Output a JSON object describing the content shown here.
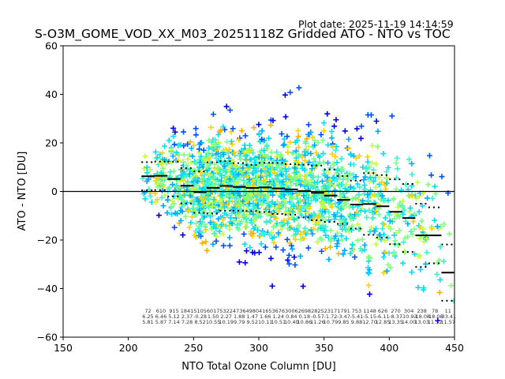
{
  "plot_date": "Plot date: 2025-11-19 14:14:59",
  "chart_data": {
    "type": "scatter",
    "title": "S-O3M_GOME_VOD_XX_M03_20251118Z Gridded ATO - NTO vs TOC",
    "xlabel": "NTO Total Ozone Column [DU]",
    "ylabel": "ATO - NTO [DU]",
    "xlim": [
      150,
      450
    ],
    "ylim": [
      -60,
      60
    ],
    "xticks": [
      "150",
      "200",
      "250",
      "300",
      "350",
      "400",
      "450"
    ],
    "yticks": [
      "60",
      "40",
      "20",
      "0",
      "−20",
      "−40",
      "−60"
    ],
    "zero_line": 0,
    "bin_width": 10,
    "bins": [
      {
        "x": 215,
        "count": "72",
        "mean": "6.25",
        "std": "5.81"
      },
      {
        "x": 225,
        "count": "610",
        "mean": "6.46",
        "std": "5.87"
      },
      {
        "x": 235,
        "count": "915",
        "mean": "5.12",
        "std": "7.14"
      },
      {
        "x": 245,
        "count": "1841",
        "mean": "2.37",
        "std": "7.28"
      },
      {
        "x": 255,
        "count": "5105",
        "mean": "-0.28",
        "std": "8.52"
      },
      {
        "x": 265,
        "count": "6017",
        "mean": "1.50",
        "std": "10.55"
      },
      {
        "x": 275,
        "count": "5322",
        "mean": "2.27",
        "std": "10.19"
      },
      {
        "x": 285,
        "count": "4736",
        "mean": "1.88",
        "std": "9.79"
      },
      {
        "x": 295,
        "count": "4980",
        "mean": "1.47",
        "std": "9.52"
      },
      {
        "x": 305,
        "count": "4165",
        "mean": "1.66",
        "std": "10.11"
      },
      {
        "x": 315,
        "count": "3676",
        "mean": "1.24",
        "std": "10.51"
      },
      {
        "x": 325,
        "count": "3006",
        "mean": "0.84",
        "std": "10.40"
      },
      {
        "x": 335,
        "count": "2698",
        "mean": "0.18",
        "std": "10.86"
      },
      {
        "x": 345,
        "count": "2825",
        "mean": "-0.57",
        "std": "11.26"
      },
      {
        "x": 355,
        "count": "2317",
        "mean": "-1.72",
        "std": "10.79"
      },
      {
        "x": 365,
        "count": "1791",
        "mean": "-3.47",
        "std": "9.85"
      },
      {
        "x": 375,
        "count": "753",
        "mean": "-5.41",
        "std": "9.88"
      },
      {
        "x": 385,
        "count": "1148",
        "mean": "-5.15",
        "std": "12.70"
      },
      {
        "x": 395,
        "count": "626",
        "mean": "-6.11",
        "std": "12.85"
      },
      {
        "x": 405,
        "count": "270",
        "mean": "-8.37",
        "std": "13.35"
      },
      {
        "x": 415,
        "count": "304",
        "mean": "-10.93",
        "std": "14.00"
      },
      {
        "x": 425,
        "count": "238",
        "mean": "-18.08",
        "std": "13.03"
      },
      {
        "x": 435,
        "count": "78",
        "mean": "-18.08",
        "std": "11.52"
      },
      {
        "x": 445,
        "count": "11",
        "mean": "-33.41",
        "std": "11.57"
      }
    ],
    "point_marker": "plus",
    "point_colors": [
      "#0000e0",
      "#0050ff",
      "#00a8ff",
      "#00e0f0",
      "#40f0d0",
      "#80ff80",
      "#c0ff40",
      "#ffd000",
      "#ffb000"
    ],
    "mean_line_color": "#000000",
    "std_line_style": "dotted"
  }
}
